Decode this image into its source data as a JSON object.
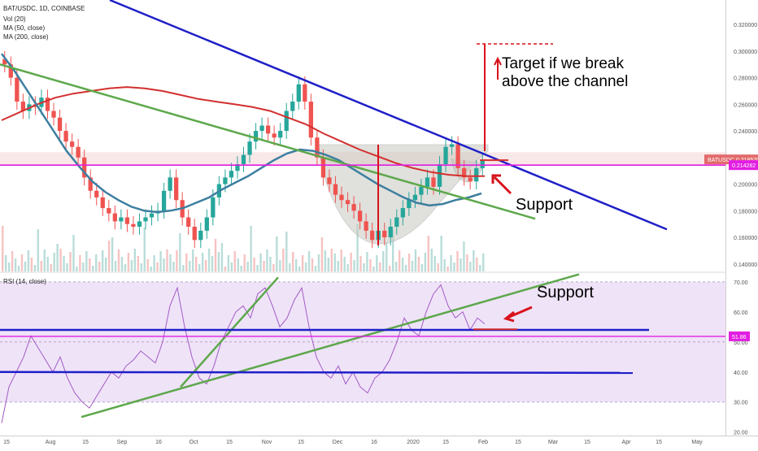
{
  "header": {
    "symbol_line": "BAT/USDC, 1D, COINBASE",
    "indicators": [
      "Vol (20)",
      "MA (50, close)",
      "MA (200, close)"
    ]
  },
  "annotations": {
    "target_text_1": "Target if we break",
    "target_text_2": "above the channel",
    "support_price": "Support",
    "support_rsi": "Support"
  },
  "price_labels": {
    "current": "BATUSDC 0.218570",
    "support_level": "0.214282",
    "rsi_value": "51.86"
  },
  "rsi_label": "RSI (14, close)",
  "colors": {
    "up": "#26a69a",
    "down": "#ef5350",
    "ma50": "#3d7fa0",
    "ma200": "#d32f2f",
    "channel": "#1f1fc8",
    "trend_green": "#5da84b",
    "magenta": "#e21ee2",
    "rsi_bg": "#efe3f8",
    "rsi_line": "#a25bc4"
  },
  "chart_data": [
    {
      "type": "candlestick",
      "title": "BAT/USDC, 1D, COINBASE",
      "x_ticks": [
        "15",
        "Aug",
        "15",
        "Sep",
        "16",
        "Oct",
        "15",
        "Nov",
        "15",
        "Dec",
        "16",
        "2020",
        "15",
        "Feb",
        "15",
        "Mar",
        "15",
        "Apr",
        "15",
        "May"
      ],
      "y_ticks": [
        "0.320000",
        "0.300000",
        "0.280000",
        "0.260000",
        "0.240000",
        "0.220000",
        "0.200000",
        "0.180000",
        "0.160000",
        "0.140000"
      ],
      "ylim": [
        0.135,
        0.335
      ],
      "close_series": [
        0.29,
        0.28,
        0.262,
        0.255,
        0.26,
        0.258,
        0.265,
        0.255,
        0.25,
        0.24,
        0.232,
        0.228,
        0.22,
        0.205,
        0.195,
        0.19,
        0.182,
        0.178,
        0.172,
        0.175,
        0.17,
        0.168,
        0.172,
        0.175,
        0.178,
        0.18,
        0.195,
        0.205,
        0.188,
        0.175,
        0.168,
        0.158,
        0.165,
        0.175,
        0.19,
        0.2,
        0.205,
        0.21,
        0.215,
        0.222,
        0.232,
        0.24,
        0.244,
        0.238,
        0.235,
        0.24,
        0.255,
        0.262,
        0.275,
        0.262,
        0.235,
        0.22,
        0.205,
        0.2,
        0.192,
        0.188,
        0.185,
        0.18,
        0.172,
        0.165,
        0.158,
        0.165,
        0.16,
        0.168,
        0.175,
        0.182,
        0.188,
        0.192,
        0.198,
        0.205,
        0.198,
        0.215,
        0.228,
        0.23,
        0.212,
        0.205,
        0.202,
        0.212,
        0.218
      ],
      "ma50": [
        0.298,
        0.285,
        0.27,
        0.255,
        0.24,
        0.225,
        0.213,
        0.202,
        0.194,
        0.188,
        0.183,
        0.18,
        0.179,
        0.18,
        0.182,
        0.186,
        0.19,
        0.196,
        0.201,
        0.206,
        0.212,
        0.218,
        0.223,
        0.226,
        0.225,
        0.222,
        0.218,
        0.212,
        0.206,
        0.2,
        0.195,
        0.19,
        0.186,
        0.184,
        0.185,
        0.188,
        0.19,
        0.193
      ],
      "ma200": [
        0.248,
        0.254,
        0.26,
        0.265,
        0.268,
        0.27,
        0.272,
        0.273,
        0.272,
        0.27,
        0.267,
        0.264,
        0.262,
        0.26,
        0.258,
        0.255,
        0.25,
        0.245,
        0.238,
        0.232,
        0.226,
        0.221,
        0.216,
        0.212,
        0.209,
        0.207,
        0.206,
        0.206
      ],
      "current_price": 0.21857,
      "support_level": 0.214282,
      "target_level": 0.304,
      "channel_top_line": [
        [
          0.336,
          "start"
        ],
        [
          0.166,
          "mid-Apr"
        ]
      ],
      "green_trendline": [
        [
          0.29,
          "Jul 15"
        ],
        [
          0.175,
          "Jan 25"
        ]
      ]
    },
    {
      "type": "line",
      "title": "RSI (14, close)",
      "y_ticks": [
        "70.00",
        "60.00",
        "50.00",
        "40.00",
        "30.00",
        "20.00"
      ],
      "ylim": [
        18,
        73
      ],
      "band": [
        30,
        70
      ],
      "current_value": 51.86,
      "values": [
        23,
        35,
        40,
        45,
        52,
        48,
        44,
        40,
        45,
        38,
        33,
        30,
        28,
        32,
        36,
        40,
        38,
        42,
        44,
        47,
        45,
        43,
        50,
        62,
        68,
        55,
        45,
        38,
        36,
        42,
        50,
        55,
        60,
        62,
        58,
        66,
        68,
        62,
        55,
        58,
        64,
        68,
        55,
        45,
        40,
        38,
        42,
        36,
        40,
        35,
        33,
        38,
        40,
        44,
        50,
        58,
        54,
        52,
        60,
        66,
        69,
        62,
        58,
        60,
        54,
        58,
        56
      ],
      "support_levels": [
        54,
        40
      ],
      "support_red_segment": 54.2
    }
  ]
}
